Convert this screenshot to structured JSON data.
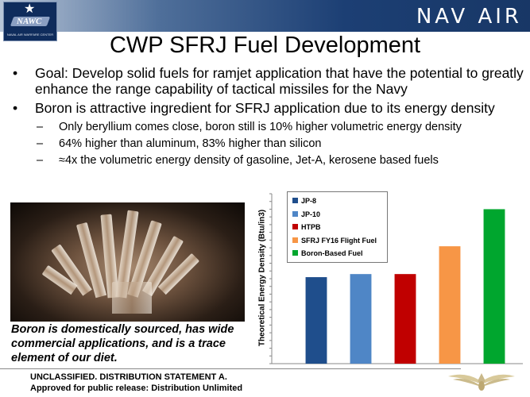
{
  "header": {
    "logo_text": "NAWC",
    "logo_subtext": "NAVAL AIR WARFARE CENTER",
    "brand": "NAV AIR"
  },
  "slide": {
    "title": "CWP SFRJ Fuel Development",
    "bullets": [
      {
        "text": "Goal: Develop solid fuels for ramjet application that have the potential to greatly enhance the range capability of tactical missiles for the Navy",
        "subs": []
      },
      {
        "text": "Boron is attractive ingredient for SFRJ application due to its energy density",
        "subs": [
          "Only beryllium comes close, boron still is 10% higher volumetric energy density",
          "64% higher than aluminum, 83% higher than silicon",
          "≈4x the volumetric energy density of gasoline, Jet-A, kerosene based fuels"
        ]
      }
    ],
    "caption": "Boron is domestically sourced, has wide commercial applications, and is a trace element of our diet.",
    "footer_line1": "UNCLASSIFIED. DISTRIBUTION STATEMENT A.",
    "footer_line2": "Approved for public release: Distribution Unlimited"
  },
  "chart_data": {
    "type": "bar",
    "ylabel": "Theoretical Energy Density (Btu/in3)",
    "categories": [
      "JP-8",
      "JP-10",
      "HTPB",
      "SFRJ FY16 Flight Fuel",
      "Boron-Based Fuel"
    ],
    "values": [
      56,
      58,
      58,
      76,
      100
    ],
    "ylim": [
      0,
      110
    ],
    "colors": [
      "#1f4e8c",
      "#4f86c6",
      "#c00000",
      "#f79646",
      "#00a62e"
    ],
    "legend": {
      "position": "top-left",
      "entries": [
        "JP-8",
        "JP-10",
        "HTPB",
        "SFRJ FY16 Flight Fuel",
        "Boron-Based Fuel"
      ]
    },
    "grid": false,
    "y_tick_labels": false
  }
}
